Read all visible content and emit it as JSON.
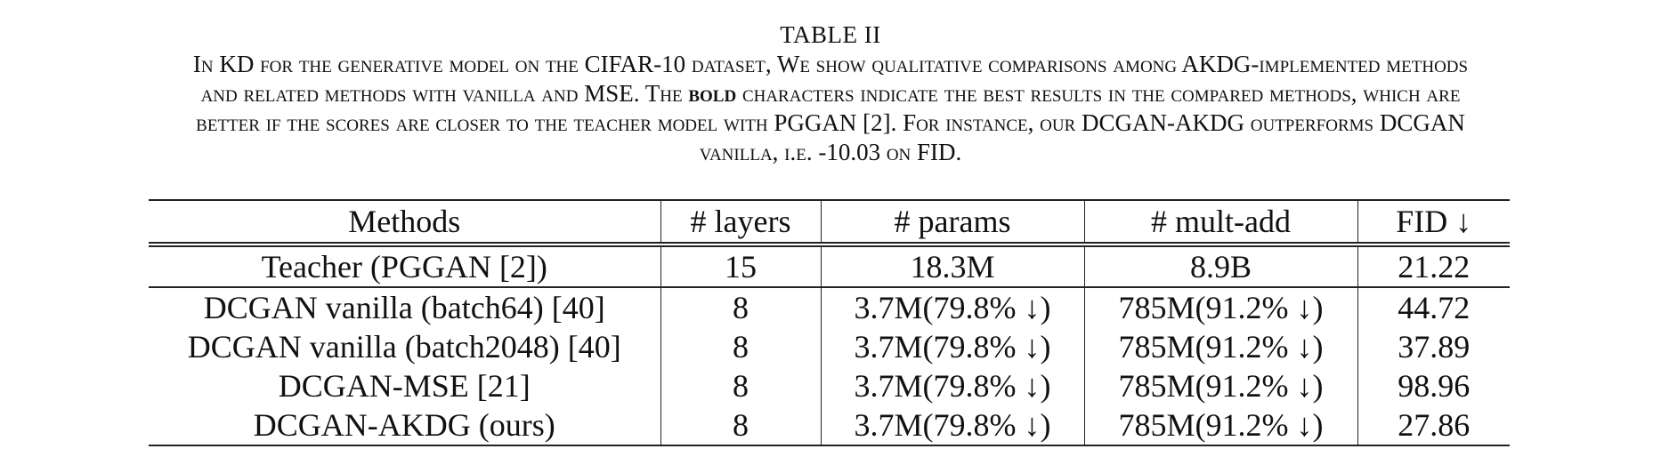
{
  "caption": {
    "label": "TABLE II",
    "lines": [
      "In KD for the generative model on the CIFAR-10 dataset, We show qualitative comparisons among AKDG-implemented methods",
      "and related methods with vanilla and MSE. The ",
      "bold",
      " characters indicate the best results in the compared methods, which are",
      "better if the scores are closer to the teacher model with PGGAN [2]. For instance, our DCGAN-AKDG outperforms DCGAN",
      "vanilla, i.e. -10.03 on FID."
    ]
  },
  "table": {
    "headers": [
      "Methods",
      "# layers",
      "# params",
      "# mult-add",
      "FID ↓"
    ],
    "teacher": [
      "Teacher (PGGAN [2])",
      "15",
      "18.3M",
      "8.9B",
      "21.22"
    ],
    "rows": [
      [
        "DCGAN vanilla (batch64) [40]",
        "8",
        "3.7M(79.8% ↓)",
        "785M(91.2% ↓)",
        "44.72"
      ],
      [
        "DCGAN vanilla (batch2048) [40]",
        "8",
        "3.7M(79.8% ↓)",
        "785M(91.2% ↓)",
        "37.89"
      ],
      [
        "DCGAN-MSE [21]",
        "8",
        "3.7M(79.8% ↓)",
        "785M(91.2% ↓)",
        "98.96"
      ],
      [
        "DCGAN-AKDG (ours)",
        "8",
        "3.7M(79.8% ↓)",
        "785M(91.2% ↓)",
        "27.86"
      ]
    ]
  }
}
